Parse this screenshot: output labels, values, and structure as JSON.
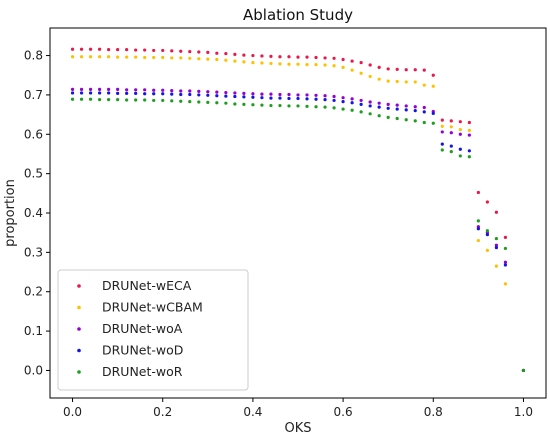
{
  "chart_data": {
    "type": "scatter",
    "title": "Ablation Study",
    "xlabel": "OKS",
    "ylabel": "proportion",
    "xlim": [
      -0.05,
      1.05
    ],
    "ylim": [
      -0.07,
      0.87
    ],
    "xticks": [
      "0.0",
      "0.2",
      "0.4",
      "0.6",
      "0.8",
      "1.0"
    ],
    "xtick_values": [
      0.0,
      0.2,
      0.4,
      0.6,
      0.8,
      1.0
    ],
    "yticks": [
      "0.0",
      "0.1",
      "0.2",
      "0.3",
      "0.4",
      "0.5",
      "0.6",
      "0.7",
      "0.8"
    ],
    "ytick_values": [
      0.0,
      0.1,
      0.2,
      0.3,
      0.4,
      0.5,
      0.6,
      0.7,
      0.8
    ],
    "grid": false,
    "legend_position": "lower-left",
    "x": [
      0.0,
      0.02,
      0.04,
      0.06,
      0.08,
      0.1,
      0.12,
      0.14,
      0.16,
      0.18,
      0.2,
      0.22,
      0.24,
      0.26,
      0.28,
      0.3,
      0.32,
      0.34,
      0.36,
      0.38,
      0.4,
      0.42,
      0.44,
      0.46,
      0.48,
      0.5,
      0.52,
      0.54,
      0.56,
      0.58,
      0.6,
      0.62,
      0.64,
      0.66,
      0.68,
      0.7,
      0.72,
      0.74,
      0.76,
      0.78,
      0.8,
      0.82,
      0.84,
      0.86,
      0.88,
      0.9,
      0.92,
      0.94,
      0.96,
      0.98,
      1.0
    ],
    "series": [
      {
        "name": "DRUNet-wECA",
        "color": "#e8194a",
        "values": [
          0.816,
          0.816,
          0.816,
          0.816,
          0.815,
          0.815,
          0.815,
          0.814,
          0.814,
          0.813,
          0.813,
          0.812,
          0.811,
          0.81,
          0.809,
          0.808,
          0.806,
          0.805,
          0.803,
          0.801,
          0.8,
          0.799,
          0.798,
          0.797,
          0.797,
          0.796,
          0.796,
          0.795,
          0.794,
          0.793,
          0.79,
          0.786,
          0.782,
          0.776,
          0.77,
          0.766,
          0.765,
          0.764,
          0.764,
          0.763,
          0.75,
          0.636,
          0.634,
          0.632,
          0.63,
          0.452,
          0.428,
          0.402,
          0.338,
          null,
          0.0
        ]
      },
      {
        "name": "DRUNet-wCBAM",
        "color": "#ffc000",
        "values": [
          0.797,
          0.797,
          0.797,
          0.797,
          0.797,
          0.796,
          0.796,
          0.796,
          0.795,
          0.795,
          0.795,
          0.794,
          0.794,
          0.793,
          0.792,
          0.791,
          0.79,
          0.788,
          0.786,
          0.784,
          0.782,
          0.781,
          0.78,
          0.779,
          0.778,
          0.778,
          0.777,
          0.777,
          0.776,
          0.774,
          0.77,
          0.763,
          0.755,
          0.747,
          0.74,
          0.735,
          0.734,
          0.733,
          0.733,
          0.725,
          0.722,
          0.62,
          0.619,
          0.612,
          0.61,
          0.33,
          0.305,
          0.265,
          0.22,
          null,
          0.0
        ]
      },
      {
        "name": "DRUNet-woA",
        "color": "#9400d3",
        "values": [
          0.714,
          0.714,
          0.714,
          0.714,
          0.714,
          0.714,
          0.713,
          0.713,
          0.713,
          0.712,
          0.712,
          0.711,
          0.71,
          0.71,
          0.709,
          0.708,
          0.707,
          0.706,
          0.705,
          0.704,
          0.703,
          0.702,
          0.702,
          0.701,
          0.701,
          0.7,
          0.7,
          0.699,
          0.698,
          0.696,
          0.693,
          0.69,
          0.686,
          0.682,
          0.679,
          0.676,
          0.674,
          0.672,
          0.67,
          0.668,
          0.658,
          0.606,
          0.604,
          0.6,
          0.598,
          0.365,
          0.35,
          0.318,
          0.275,
          null,
          0.0
        ]
      },
      {
        "name": "DRUNet-woD",
        "color": "#1414e6",
        "values": [
          0.705,
          0.705,
          0.705,
          0.705,
          0.705,
          0.704,
          0.704,
          0.704,
          0.703,
          0.703,
          0.703,
          0.702,
          0.701,
          0.701,
          0.7,
          0.699,
          0.698,
          0.697,
          0.696,
          0.695,
          0.694,
          0.693,
          0.692,
          0.692,
          0.691,
          0.691,
          0.69,
          0.689,
          0.688,
          0.686,
          0.683,
          0.68,
          0.676,
          0.672,
          0.669,
          0.666,
          0.664,
          0.662,
          0.66,
          0.657,
          0.653,
          0.575,
          0.57,
          0.562,
          0.558,
          0.36,
          0.345,
          0.312,
          0.268,
          null,
          0.0
        ]
      },
      {
        "name": "DRUNet-woR",
        "color": "#1e9e1e",
        "values": [
          0.689,
          0.689,
          0.689,
          0.688,
          0.688,
          0.688,
          0.687,
          0.687,
          0.687,
          0.686,
          0.686,
          0.685,
          0.684,
          0.683,
          0.682,
          0.681,
          0.68,
          0.679,
          0.677,
          0.676,
          0.675,
          0.674,
          0.673,
          0.673,
          0.672,
          0.672,
          0.671,
          0.67,
          0.669,
          0.667,
          0.664,
          0.661,
          0.657,
          0.652,
          0.647,
          0.643,
          0.64,
          0.637,
          0.634,
          0.63,
          0.628,
          0.56,
          0.556,
          0.545,
          0.543,
          0.38,
          0.355,
          0.335,
          0.31,
          null,
          0.0
        ]
      }
    ]
  }
}
